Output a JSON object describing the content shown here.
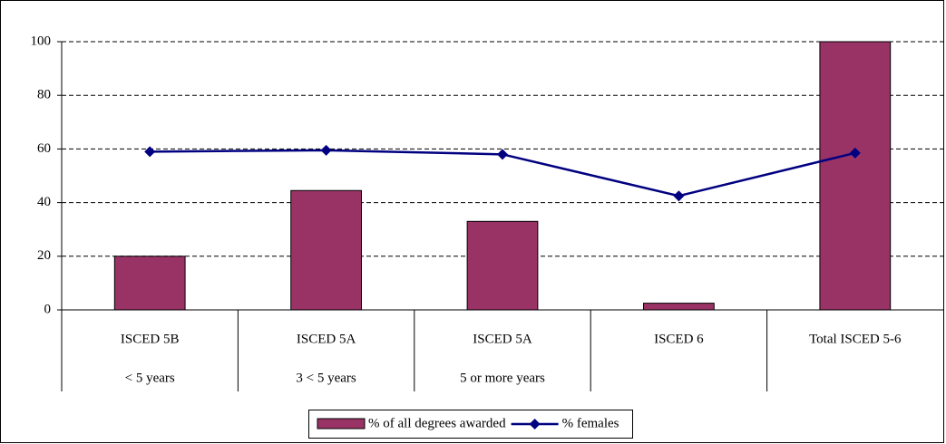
{
  "chart_data": {
    "type": "bar_line",
    "categories": [
      "ISCED 5B",
      "ISCED 5A",
      "ISCED 5A",
      "ISCED 6",
      "Total ISCED 5-6"
    ],
    "category_sublabels": [
      "< 5 years",
      "3 < 5 years",
      "5 or more years",
      null,
      null
    ],
    "series": [
      {
        "name": "% of all degrees awarded",
        "type": "bar",
        "color": "#993366",
        "values": [
          20,
          44.5,
          33,
          2.5,
          100
        ]
      },
      {
        "name": "% females",
        "type": "line",
        "color": "#000080",
        "values": [
          59,
          59.5,
          58,
          42.5,
          58.5
        ]
      }
    ],
    "ylim": [
      0,
      100
    ],
    "yticks": [
      0,
      20,
      40,
      60,
      80,
      100
    ],
    "grid": true,
    "legend": "bottom"
  }
}
